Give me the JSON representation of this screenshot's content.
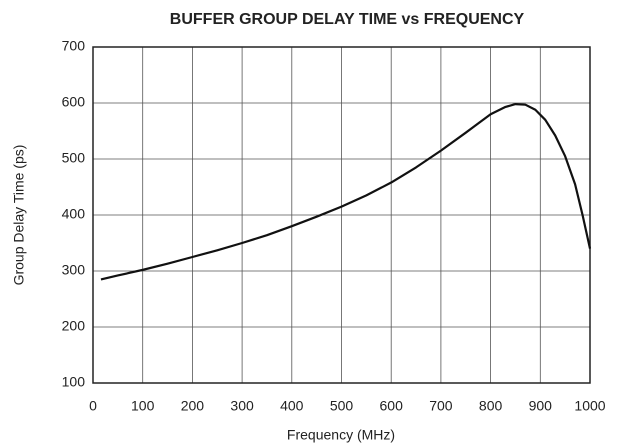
{
  "chart_data": {
    "type": "line",
    "title": "BUFFER GROUP DELAY TIME vs FREQUENCY",
    "xlabel": "Frequency (MHz)",
    "ylabel": "Group Delay Time (ps)",
    "x": [
      16,
      50,
      100,
      150,
      200,
      250,
      300,
      350,
      400,
      450,
      500,
      550,
      600,
      650,
      700,
      750,
      800,
      830,
      850,
      870,
      890,
      910,
      930,
      950,
      970,
      985,
      1000
    ],
    "series": [
      {
        "name": "Group Delay",
        "color": "#111111",
        "values": [
          285,
          292,
          302,
          313,
          325,
          337,
          350,
          364,
          380,
          397,
          415,
          435,
          458,
          485,
          515,
          547,
          580,
          593,
          598,
          597,
          588,
          570,
          542,
          505,
          455,
          400,
          340
        ]
      }
    ],
    "xlim": [
      0,
      1000
    ],
    "xticks": [
      0,
      100,
      200,
      300,
      400,
      500,
      600,
      700,
      800,
      900,
      1000
    ],
    "ylim": [
      100,
      700
    ],
    "yticks": [
      100,
      200,
      300,
      400,
      500,
      600,
      700
    ],
    "grid": true
  }
}
